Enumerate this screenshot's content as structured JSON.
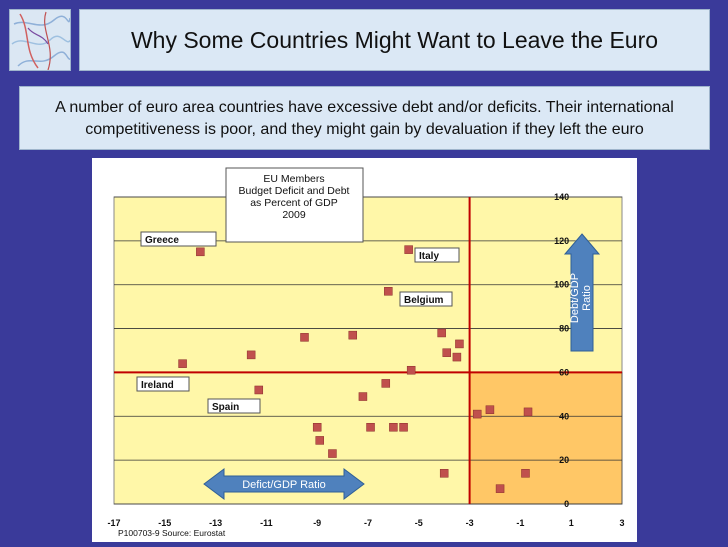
{
  "header": {
    "title": "Why Some Countries Might Want to Leave the Euro",
    "subtitle_line1": "A number of euro area countries have excessive debt and/or deficits. Their international",
    "subtitle_line2": "competitiveness is poor, and they might gain by devaluation if they left the euro"
  },
  "colors": {
    "background": "#3a3a9a",
    "plot_area": "#fff7a8",
    "highlight_quadrant": "#ffc766",
    "marker": "#c0504d",
    "threshold_line": "#c00000",
    "arrow": "#4f81bd"
  },
  "chart_data": {
    "type": "scatter",
    "title": "EU Members\nBudget Deficit and Debt\nas Percent of GDP\n2009",
    "title_lines": [
      "EU Members",
      "Budget Deficit and Debt",
      "as Percent of GDP",
      "2009"
    ],
    "xlabel": "Defict/GDP Ratio",
    "ylabel": "Debt/GDP Ratio",
    "ylabel_lines": [
      "Debt/GDP",
      "Ratio"
    ],
    "xlim": [
      -17,
      3
    ],
    "ylim": [
      0,
      140
    ],
    "xticks": [
      -17,
      -15,
      -13,
      -11,
      -9,
      -7,
      -5,
      -3,
      -1,
      1,
      3
    ],
    "yticks": [
      0,
      20,
      40,
      60,
      80,
      100,
      120,
      140
    ],
    "grid": true,
    "thresholds": {
      "x": -3,
      "y": 60
    },
    "source": "P100703-9 Source: Eurostat",
    "points": [
      {
        "x": -13.6,
        "y": 115
      },
      {
        "x": -14.3,
        "y": 64
      },
      {
        "x": -11.6,
        "y": 68
      },
      {
        "x": -11.3,
        "y": 52
      },
      {
        "x": -9.5,
        "y": 76
      },
      {
        "x": -9.0,
        "y": 35
      },
      {
        "x": -8.9,
        "y": 29
      },
      {
        "x": -8.4,
        "y": 23
      },
      {
        "x": -7.6,
        "y": 77
      },
      {
        "x": -7.2,
        "y": 49
      },
      {
        "x": -6.9,
        "y": 35
      },
      {
        "x": -6.3,
        "y": 55
      },
      {
        "x": -6.2,
        "y": 97
      },
      {
        "x": -6.0,
        "y": 35
      },
      {
        "x": -5.6,
        "y": 35
      },
      {
        "x": -5.4,
        "y": 116
      },
      {
        "x": -5.3,
        "y": 61
      },
      {
        "x": -4.1,
        "y": 78
      },
      {
        "x": -3.9,
        "y": 69
      },
      {
        "x": -4.0,
        "y": 14
      },
      {
        "x": -3.5,
        "y": 67
      },
      {
        "x": -3.4,
        "y": 73
      },
      {
        "x": -2.7,
        "y": 41
      },
      {
        "x": -2.2,
        "y": 43
      },
      {
        "x": -1.8,
        "y": 7
      },
      {
        "x": -0.7,
        "y": 42
      },
      {
        "x": -0.8,
        "y": 14
      }
    ],
    "annotations": [
      {
        "label": "Greece"
      },
      {
        "label": "Italy"
      },
      {
        "label": "Belgium"
      },
      {
        "label": "Ireland"
      },
      {
        "label": "Spain"
      }
    ]
  }
}
